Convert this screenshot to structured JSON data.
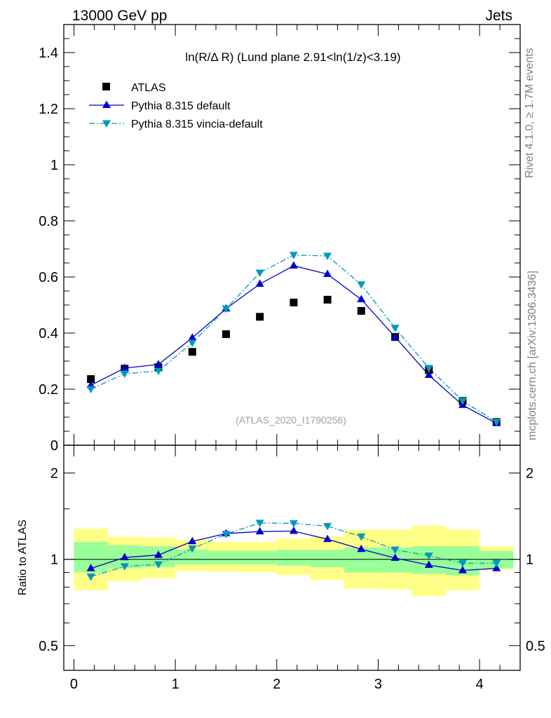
{
  "header": {
    "left": "13000 GeV pp",
    "right": "Jets"
  },
  "side_labels": {
    "rivet": "Rivet 4.1.0, ≥ 1.7M events",
    "mcplots": "mcplots.cern.ch [arXiv:1306.3436]"
  },
  "chart_data": [
    {
      "type": "scatter",
      "panel": "main",
      "title": "ln(R/Δ R) (Lund plane 2.91<ln(1/z)<3.19)",
      "watermark": "(ATLAS_2020_I1790256)",
      "xlim": [
        -0.1,
        4.4
      ],
      "ylim": [
        0,
        1.5
      ],
      "yticks": [
        0,
        0.2,
        0.4,
        0.6,
        0.8,
        1,
        1.2,
        1.4
      ],
      "ytick_labels": [
        "0",
        "0.2",
        "0.4",
        "0.6",
        "0.8",
        "1",
        "1.2",
        "1.4"
      ],
      "legend_position": "top-left",
      "x": [
        0.167,
        0.5,
        0.833,
        1.167,
        1.5,
        1.833,
        2.167,
        2.5,
        2.833,
        3.167,
        3.5,
        3.833,
        4.167
      ],
      "series": [
        {
          "name": "ATLAS",
          "style": "data",
          "color": "#000000",
          "values": [
            0.236,
            0.273,
            0.278,
            0.333,
            0.396,
            0.458,
            0.509,
            0.519,
            0.479,
            0.386,
            0.268,
            0.158,
            0.083
          ]
        },
        {
          "name": "Pythia 8.315 default",
          "style": "solid",
          "color": "#0000cc",
          "values": [
            0.214,
            0.275,
            0.288,
            0.383,
            0.487,
            0.575,
            0.64,
            0.61,
            0.52,
            0.386,
            0.25,
            0.143,
            0.078
          ]
        },
        {
          "name": "Pythia 8.315 vincia-default",
          "style": "dashdot",
          "color": "#0099bb",
          "values": [
            0.2,
            0.255,
            0.265,
            0.365,
            0.487,
            0.615,
            0.678,
            0.675,
            0.573,
            0.418,
            0.275,
            0.158,
            0.083
          ]
        }
      ]
    },
    {
      "type": "line",
      "panel": "ratio",
      "ylabel": "Ratio to ATLAS",
      "yscale": "log",
      "ylim": [
        0.41,
        2.5
      ],
      "yticks": [
        0.5,
        1,
        2
      ],
      "ytick_labels": [
        "0.5",
        "1",
        "2"
      ],
      "xlim": [
        -0.1,
        4.4
      ],
      "xticks": [
        0,
        1,
        2,
        3,
        4
      ],
      "xtick_labels": [
        "0",
        "1",
        "2",
        "3",
        "4"
      ],
      "bin_edges": [
        0,
        0.333,
        0.667,
        1.0,
        1.333,
        1.667,
        2.0,
        2.333,
        2.667,
        3.0,
        3.333,
        3.667,
        4.0,
        4.333
      ],
      "band_stat": {
        "color": "#99ff99",
        "lower": [
          0.9,
          0.93,
          0.94,
          0.96,
          0.96,
          0.96,
          0.95,
          0.94,
          0.9,
          0.9,
          0.89,
          0.88,
          0.93
        ],
        "upper": [
          1.15,
          1.12,
          1.11,
          1.08,
          1.07,
          1.07,
          1.08,
          1.08,
          1.1,
          1.1,
          1.11,
          1.11,
          1.07
        ]
      },
      "band_syst": {
        "color": "#ffff88",
        "lower": [
          0.78,
          0.84,
          0.86,
          0.91,
          0.905,
          0.9,
          0.88,
          0.845,
          0.79,
          0.785,
          0.745,
          0.78,
          0.92
        ],
        "upper": [
          1.28,
          1.2,
          1.19,
          1.17,
          1.15,
          1.15,
          1.18,
          1.2,
          1.27,
          1.27,
          1.31,
          1.27,
          1.11
        ]
      },
      "x": [
        0.167,
        0.5,
        0.833,
        1.167,
        1.5,
        1.833,
        2.167,
        2.5,
        2.833,
        3.167,
        3.5,
        3.833,
        4.167
      ],
      "series": [
        {
          "name": "Pythia 8.315 default",
          "style": "solid",
          "color": "#0000cc",
          "values": [
            0.93,
            1.015,
            1.035,
            1.155,
            1.23,
            1.25,
            1.255,
            1.175,
            1.085,
            1.01,
            0.955,
            0.915,
            0.93
          ]
        },
        {
          "name": "Pythia 8.315 vincia-default",
          "style": "dashdot",
          "color": "#0099bb",
          "values": [
            0.87,
            0.945,
            0.96,
            1.09,
            1.225,
            1.34,
            1.335,
            1.305,
            1.2,
            1.08,
            1.03,
            0.97,
            0.97
          ]
        }
      ]
    }
  ]
}
